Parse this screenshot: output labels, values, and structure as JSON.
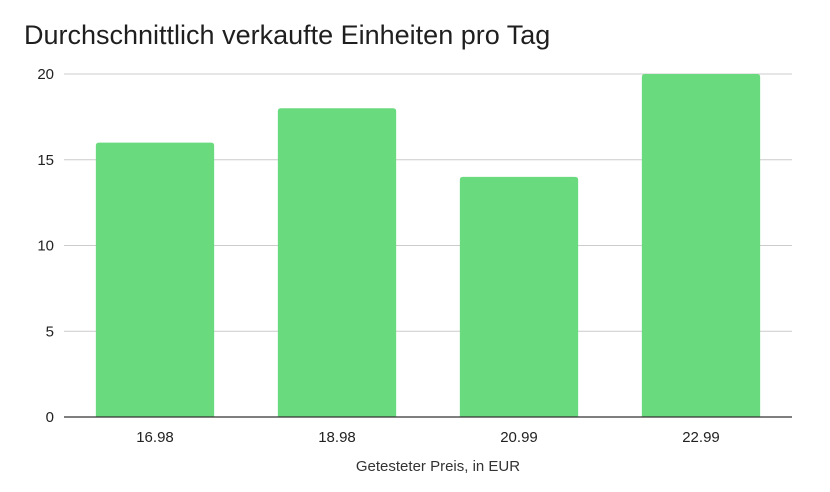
{
  "chart_data": {
    "type": "bar",
    "title": "Durchschnittlich verkaufte Einheiten pro Tag",
    "xlabel": "Getesteter Preis, in EUR",
    "ylabel": "",
    "categories": [
      "16.98",
      "18.98",
      "20.99",
      "22.99"
    ],
    "values": [
      16,
      18,
      14,
      20
    ],
    "ylim": [
      0,
      20
    ],
    "yticks": [
      "0",
      "5",
      "10",
      "15",
      "20"
    ],
    "grid": true,
    "legend": "none",
    "bar_color": "#6ada7e"
  }
}
